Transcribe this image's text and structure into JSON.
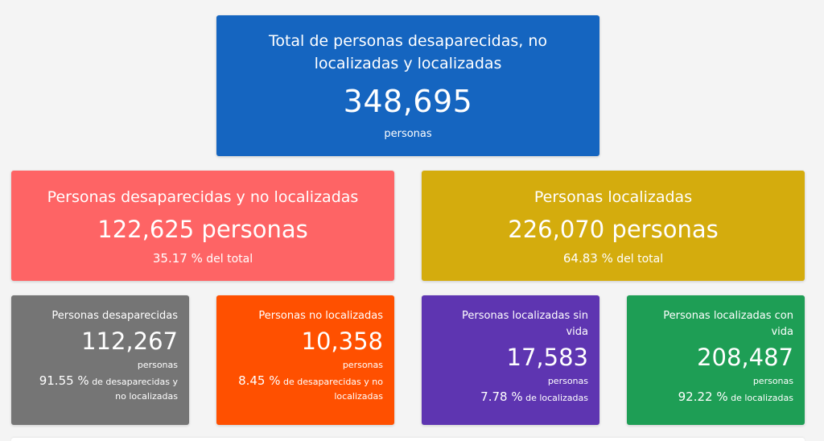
{
  "total": {
    "title": "Total de personas desaparecidas, no localizadas y localizadas",
    "number": "348,695",
    "unit": "personas",
    "color": "#1565c0"
  },
  "missing_unlocated": {
    "title": "Personas desaparecidas y no localizadas",
    "number": "122,625 personas",
    "pct_value": "35.17 %",
    "pct_label": "del total",
    "color": "#fe6465"
  },
  "located": {
    "title": "Personas localizadas",
    "number": "226,070 personas",
    "pct_value": "64.83 %",
    "pct_label": "del total",
    "color": "#d4ac0d"
  },
  "breakdown": [
    {
      "title": "Personas desaparecidas",
      "number": "112,267",
      "unit": "personas",
      "pct_value": "91.55 %",
      "pct_label": "de desaparecidas y no localizadas",
      "color": "#757575"
    },
    {
      "title": "Personas no localizadas",
      "number": "10,358",
      "unit": "personas",
      "pct_value": "8.45 %",
      "pct_label": "de desaparecidas y no localizadas",
      "color": "#ff5000"
    },
    {
      "title": "Personas localizadas sin vida",
      "number": "17,583",
      "unit": "personas",
      "pct_value": "7.78 %",
      "pct_label": "de localizadas",
      "color": "#5e35b1"
    },
    {
      "title": "Personas localizadas con vida",
      "number": "208,487",
      "unit": "personas",
      "pct_value": "92.22 %",
      "pct_label": "de localizadas",
      "color": "#1e9e55"
    }
  ]
}
